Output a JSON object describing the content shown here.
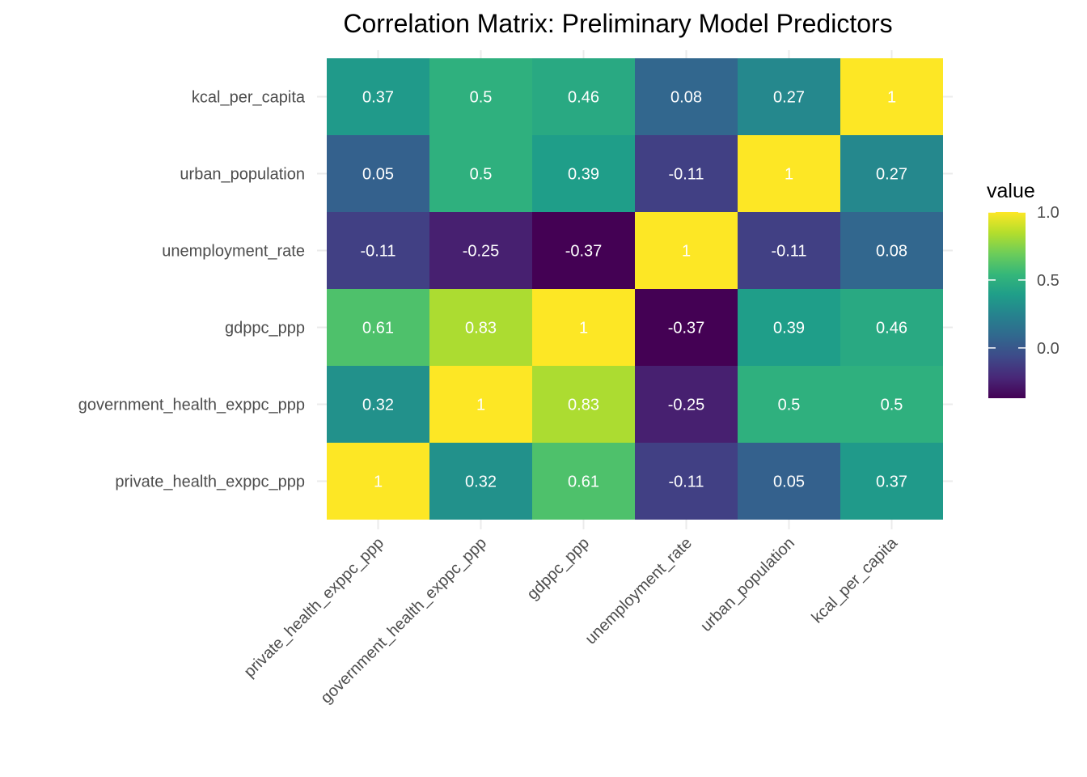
{
  "chart_data": {
    "type": "heatmap",
    "title": "Correlation Matrix: Preliminary Model Predictors",
    "xlabel": "",
    "ylabel": "",
    "x_categories": [
      "private_health_exppc_ppp",
      "government_health_exppc_ppp",
      "gdppc_ppp",
      "unemployment_rate",
      "urban_population",
      "kcal_per_capita"
    ],
    "y_categories": [
      "private_health_exppc_ppp",
      "government_health_exppc_ppp",
      "gdppc_ppp",
      "unemployment_rate",
      "urban_population",
      "kcal_per_capita"
    ],
    "values": [
      [
        1,
        0.32,
        0.61,
        -0.11,
        0.05,
        0.37
      ],
      [
        0.32,
        1,
        0.83,
        -0.25,
        0.5,
        0.5
      ],
      [
        0.61,
        0.83,
        1,
        -0.37,
        0.39,
        0.46
      ],
      [
        -0.11,
        -0.25,
        -0.37,
        1,
        -0.11,
        0.08
      ],
      [
        0.05,
        0.5,
        0.39,
        -0.11,
        1,
        0.27
      ],
      [
        0.37,
        0.5,
        0.46,
        0.08,
        0.27,
        1
      ]
    ],
    "colorscale": "viridis",
    "color_range": [
      -0.37,
      1
    ],
    "legend": {
      "title": "value",
      "ticks": [
        1.0,
        0.5,
        0.0
      ],
      "tick_labels": [
        "1.0",
        "0.5",
        "0.0"
      ],
      "placement": "right"
    },
    "grid": true
  }
}
